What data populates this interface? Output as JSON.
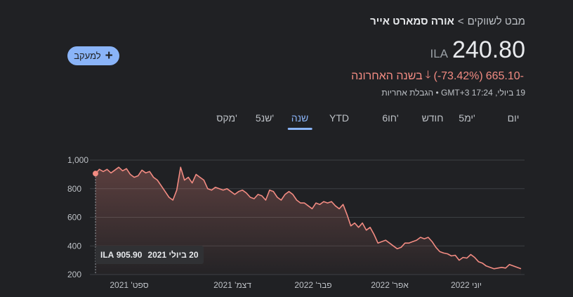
{
  "breadcrumb": {
    "root": "מבט לשווקים",
    "separator": ">",
    "current": "אורה סמארט אייר"
  },
  "follow_button": {
    "label": "למעקב",
    "icon": "plus-icon"
  },
  "quote": {
    "price": "240.80",
    "currency": "ILA",
    "change_abs": "665.10-",
    "change_pct": "(-73.42%)",
    "change_period": "בשנה האחרונה",
    "change_icon": "arrow-down-icon",
    "timestamp": "19 ביולי, 17:24 GMT+3",
    "disclaimer": "הגבלת אחריות",
    "meta_separator": "•"
  },
  "tabs": {
    "items": [
      "יום",
      "5ימ'",
      "חודש",
      "6חו'",
      "YTD",
      "שנה",
      "5שנ'",
      "מקס'"
    ],
    "active": "שנה"
  },
  "tooltip": {
    "date": "20 ביולי 2021",
    "value": "905.90 ILA"
  },
  "colors": {
    "background": "#202124",
    "accent": "#8ab4f8",
    "negative": "#f28b82"
  },
  "chart_data": {
    "type": "area",
    "y_ticks": [
      "1,000",
      "800",
      "600",
      "400",
      "200"
    ],
    "ylim": [
      200,
      1000
    ],
    "x_ticks": [
      "ספט' 2021",
      "דצמ' 2021",
      "פבר' 2022",
      "אפר' 2022",
      "יוני 2022"
    ],
    "series": [
      {
        "values": [
          905.9,
          935,
          920,
          935,
          910,
          930,
          950,
          925,
          940,
          900,
          880,
          890,
          930,
          910,
          920,
          880,
          860,
          820,
          780,
          740,
          720,
          790,
          950,
          860,
          880,
          840,
          900,
          880,
          860,
          800,
          790,
          810,
          800,
          790,
          800,
          780,
          760,
          780,
          790,
          770,
          740,
          730,
          760,
          750,
          720,
          790,
          780,
          740,
          720,
          760,
          780,
          760,
          720,
          700,
          700,
          680,
          660,
          700,
          690,
          710,
          700,
          710,
          680,
          660,
          690,
          620,
          540,
          560,
          530,
          560,
          510,
          530,
          480,
          420,
          430,
          440,
          420,
          400,
          380,
          390,
          420,
          420,
          430,
          440,
          460,
          450,
          460,
          430,
          390,
          360,
          350,
          345,
          330,
          335,
          300,
          320,
          315,
          340,
          320,
          290,
          280,
          260,
          250,
          240,
          245,
          250,
          245,
          270,
          260,
          250,
          240.8
        ]
      }
    ]
  }
}
